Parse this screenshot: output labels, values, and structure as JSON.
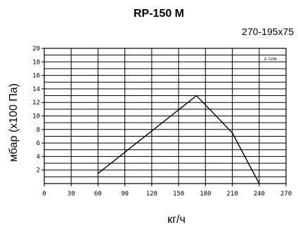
{
  "chart_data": {
    "type": "line",
    "title": "RP-150 M",
    "subtitle": "270-195x75",
    "xlabel": "кг/ч",
    "ylabel": "мбар (x100 Па)",
    "stamp": "A-5296",
    "xlim": [
      0,
      270
    ],
    "ylim": [
      0,
      20
    ],
    "x_ticks": [
      0,
      30,
      60,
      90,
      120,
      150,
      180,
      210,
      240,
      270
    ],
    "x_tick_labels": [
      "0",
      "30",
      "60",
      "90",
      "120",
      "150",
      "180",
      "210",
      "240",
      "270"
    ],
    "y_ticks": [
      2,
      4,
      6,
      8,
      10,
      12,
      14,
      16,
      18,
      20
    ],
    "y_tick_labels": [
      "2",
      "4",
      "6",
      "8",
      "10",
      "12",
      "14",
      "16",
      "18",
      "20"
    ],
    "y_grid": [
      1,
      2,
      3,
      4,
      5,
      6,
      7,
      8,
      9,
      10,
      11,
      12,
      13,
      14,
      15,
      16,
      17,
      18,
      19,
      20
    ],
    "grid": true,
    "series": [
      {
        "x": [
          60,
          170,
          210,
          240
        ],
        "y": [
          1.5,
          13,
          7.5,
          0
        ]
      }
    ]
  }
}
